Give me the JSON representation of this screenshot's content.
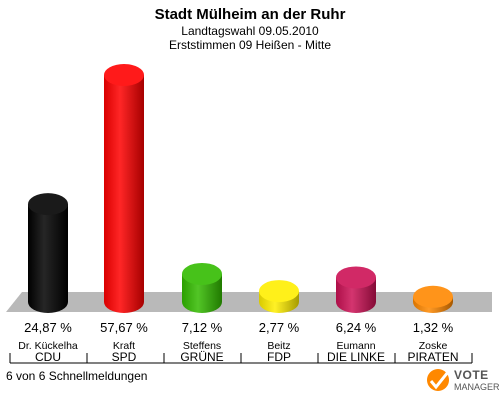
{
  "chart_data": {
    "type": "bar",
    "title": "Stadt Mülheim an der Ruhr",
    "subtitle1": "Landtagswahl 09.05.2010",
    "subtitle2": "Erststimmen 09 Heißen - Mitte",
    "categories": [
      "CDU",
      "SPD",
      "GRÜNE",
      "FDP",
      "DIE LINKE",
      "PIRATEN"
    ],
    "candidates": [
      "Dr. Kückelha",
      "Kraft",
      "Steffens",
      "Beitz",
      "Eumann",
      "Zoske"
    ],
    "values": [
      24.87,
      57.67,
      7.12,
      2.77,
      6.24,
      1.32
    ],
    "value_labels": [
      "24,87 %",
      "57,67 %",
      "7,12 %",
      "2,77 %",
      "6,24 %",
      "1,32 %"
    ],
    "colors": [
      "#000000",
      "#ff0000",
      "#33bb00",
      "#ffee00",
      "#cc1155",
      "#ff8800"
    ],
    "ylim": [
      0,
      57.67
    ],
    "grid": false
  },
  "footer": {
    "status": "6 von 6 Schnellmeldungen"
  },
  "logo": {
    "line1": "VOTE",
    "line2": "MANAGER"
  }
}
